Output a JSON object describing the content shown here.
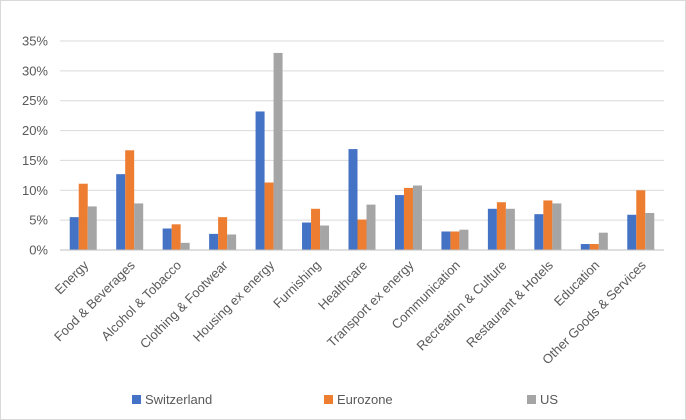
{
  "chart_data": {
    "type": "bar",
    "title": "",
    "xlabel": "",
    "ylabel": "",
    "ylim": [
      0,
      35
    ],
    "y_ticks": [
      "0%",
      "5%",
      "10%",
      "15%",
      "20%",
      "25%",
      "30%",
      "35%"
    ],
    "grid": true,
    "legend_position": "bottom",
    "categories": [
      "Energy",
      "Food & Beverages",
      "Alcohol & Tobacco",
      "Clothing & Footwear",
      "Housing ex energy",
      "Furnishing",
      "Healthcare",
      "Transport ex energy",
      "Communication",
      "Recreation & Culture",
      "Restaurant & Hotels",
      "Education",
      "Other Goods & Services"
    ],
    "series": [
      {
        "name": "Switzerland",
        "color": "#4472c4",
        "values": [
          5.5,
          12.7,
          3.6,
          2.7,
          23.2,
          4.6,
          16.9,
          9.2,
          3.1,
          6.9,
          6.0,
          1.0,
          5.9
        ]
      },
      {
        "name": "Eurozone",
        "color": "#ed7d31",
        "values": [
          11.1,
          16.7,
          4.3,
          5.5,
          11.3,
          6.9,
          5.1,
          10.4,
          3.1,
          8.0,
          8.3,
          1.0,
          10.0
        ]
      },
      {
        "name": "US",
        "color": "#a5a5a5",
        "values": [
          7.3,
          7.8,
          1.2,
          2.6,
          33.0,
          4.1,
          7.6,
          10.8,
          3.4,
          6.9,
          7.8,
          2.9,
          6.2
        ]
      }
    ]
  }
}
